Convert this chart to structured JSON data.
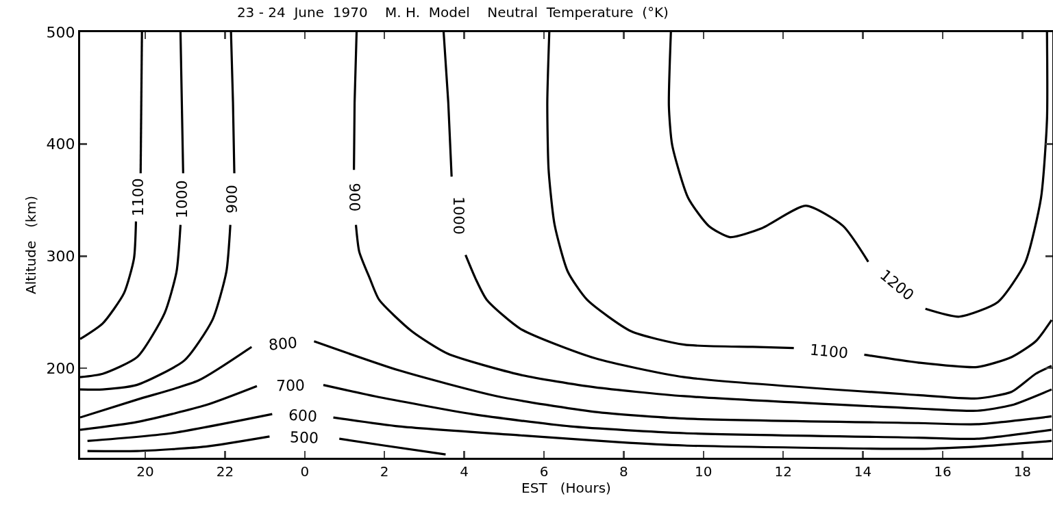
{
  "chart_data": {
    "type": "line",
    "title": "23 - 24  June  1970    M. H.  Model    Neutral  Temperature  (°K)",
    "xlabel": "EST   (Hours)",
    "ylabel": "Altitude   (km)",
    "xlim": [
      "1970-06-23T18:22",
      "1970-06-24T18:45"
    ],
    "ylim": [
      120,
      500
    ],
    "xticks": [
      {
        "value": "1970-06-23T20:00",
        "label": "20"
      },
      {
        "value": "1970-06-23T22:00",
        "label": "22"
      },
      {
        "value": "1970-06-24T00:00",
        "label": "0"
      },
      {
        "value": "1970-06-24T02:00",
        "label": "2"
      },
      {
        "value": "1970-06-24T04:00",
        "label": "4"
      },
      {
        "value": "1970-06-24T06:00",
        "label": "6"
      },
      {
        "value": "1970-06-24T08:00",
        "label": "8"
      },
      {
        "value": "1970-06-24T10:00",
        "label": "10"
      },
      {
        "value": "1970-06-24T12:00",
        "label": "12"
      },
      {
        "value": "1970-06-24T14:00",
        "label": "14"
      },
      {
        "value": "1970-06-24T16:00",
        "label": "16"
      },
      {
        "value": "1970-06-24T18:00",
        "label": "18"
      }
    ],
    "yticks": [
      200,
      300,
      400,
      500
    ],
    "grid": false,
    "legend": false,
    "marker": "none",
    "line_style": "solid",
    "series": [
      {
        "name": "1100",
        "color": "#000000",
        "x": [
          "1970-06-23T19:55",
          "1970-06-23T19:54",
          "1970-06-23T19:53",
          null,
          "1970-06-23T19:46",
          "1970-06-23T19:43",
          "1970-06-23T19:28",
          "1970-06-23T18:56",
          "1970-06-23T18:22"
        ],
        "values": [
          500,
          437,
          374,
          null,
          331,
          298,
          267,
          240,
          226
        ]
      },
      {
        "name": "1000",
        "color": "#000000",
        "x": [
          "1970-06-23T20:53",
          "1970-06-23T20:55",
          "1970-06-23T20:57",
          null,
          "1970-06-23T20:53",
          "1970-06-23T20:47",
          "1970-06-23T20:29",
          "1970-06-23T19:48",
          "1970-06-23T18:56",
          "1970-06-23T18:22"
        ],
        "values": [
          500,
          437,
          374,
          null,
          328,
          286,
          249,
          210,
          195,
          192
        ]
      },
      {
        "name": "900",
        "color": "#000000",
        "x": [
          "1970-06-23T22:09",
          "1970-06-23T22:12",
          "1970-06-23T22:14",
          null,
          "1970-06-23T22:08",
          "1970-06-23T22:02",
          "1970-06-23T21:41",
          "1970-06-23T20:59",
          "1970-06-23T19:47",
          "1970-06-23T18:56",
          "1970-06-23T18:22"
        ],
        "values": [
          500,
          437,
          374,
          null,
          328,
          286,
          243,
          207,
          185,
          181,
          181
        ]
      },
      {
        "name": "800",
        "color": "#000000",
        "x": [
          "1970-06-23T18:22",
          "1970-06-23T19:48",
          "1970-06-23T21:20",
          "1970-06-23T22:40",
          null,
          "1970-06-24T00:14",
          "1970-06-24T02:22",
          "1970-06-24T04:49",
          "1970-06-24T07:16",
          "1970-06-24T09:31",
          "1970-06-24T15:23",
          "1970-06-24T16:52",
          "1970-06-24T18:44"
        ],
        "values": [
          156,
          172,
          189,
          219,
          null,
          224,
          198,
          175,
          161,
          155,
          151,
          150,
          157
        ]
      },
      {
        "name": "700",
        "color": "#000000",
        "x": [
          "1970-06-23T18:22",
          "1970-06-23T19:48",
          "1970-06-23T21:31",
          "1970-06-23T22:48",
          null,
          "1970-06-24T00:28",
          "1970-06-24T01:45",
          "1970-06-24T04:12",
          "1970-06-24T06:40",
          "1970-06-24T09:31",
          "1970-06-24T15:23",
          "1970-06-24T16:52",
          "1970-06-24T18:44"
        ],
        "values": [
          145,
          152,
          167,
          184,
          null,
          185,
          175,
          159,
          148,
          142,
          138,
          137,
          145
        ]
      },
      {
        "name": "600",
        "color": "#000000",
        "x": [
          "1970-06-23T18:33",
          "1970-06-23T20:40",
          "1970-06-23T23:11",
          null,
          "1970-06-24T00:43",
          "1970-06-24T02:22",
          "1970-06-24T05:25",
          "1970-06-24T07:52",
          "1970-06-24T09:31",
          "1970-06-24T15:23",
          "1970-06-24T16:52",
          "1970-06-24T18:44"
        ],
        "values": [
          135,
          142,
          159,
          null,
          156,
          148,
          140,
          134,
          131,
          128,
          130,
          135
        ]
      },
      {
        "name": "500",
        "color": "#000000",
        "x": [
          "1970-06-23T18:33",
          "1970-06-23T19:48",
          "1970-06-23T21:31",
          "1970-06-23T23:07",
          null,
          "1970-06-24T00:52",
          "1970-06-24T01:59",
          "1970-06-24T03:32"
        ],
        "values": [
          126,
          126,
          130,
          139,
          null,
          137,
          131,
          123
        ]
      },
      {
        "name": "900",
        "color": "#000000",
        "x": [
          "1970-06-24T01:18",
          "1970-06-24T01:15",
          "1970-06-24T01:14",
          null,
          "1970-06-24T01:17",
          "1970-06-24T01:22",
          "1970-06-24T01:38",
          "1970-06-24T01:52",
          "1970-06-24T02:41",
          "1970-06-24T03:35",
          "1970-06-24T05:25",
          "1970-06-24T07:16",
          "1970-06-24T09:31",
          "1970-06-24T15:23",
          "1970-06-24T16:52",
          "1970-06-24T17:44",
          "1970-06-24T18:44"
        ],
        "values": [
          500,
          437,
          377,
          null,
          328,
          304,
          280,
          261,
          233,
          213,
          194,
          183,
          175,
          164,
          162,
          167,
          181
        ]
      },
      {
        "name": "1000",
        "color": "#000000",
        "x": [
          "1970-06-24T03:29",
          "1970-06-24T03:36",
          "1970-06-24T03:41",
          null,
          "1970-06-24T04:02",
          "1970-06-24T04:17",
          "1970-06-24T04:34",
          "1970-06-24T05:25",
          "1970-06-24T07:16",
          "1970-06-24T09:31",
          "1970-06-24T15:23",
          "1970-06-24T16:52",
          "1970-06-24T17:44",
          "1970-06-24T18:20",
          "1970-06-24T18:44"
        ],
        "values": [
          500,
          437,
          371,
          null,
          301,
          280,
          261,
          235,
          209,
          192,
          176,
          173,
          179,
          195,
          202
        ]
      },
      {
        "name": "1100",
        "color": "#000000",
        "x": [
          "1970-06-24T06:08",
          "1970-06-24T06:05",
          "1970-06-24T06:07",
          "1970-06-24T06:16",
          "1970-06-24T06:36",
          "1970-06-24T07:05",
          "1970-06-24T08:11",
          "1970-06-24T09:31",
          "1970-06-24T11:14",
          "1970-06-24T12:16",
          null,
          "1970-06-24T14:02",
          "1970-06-24T15:23",
          "1970-06-24T16:52",
          "1970-06-24T17:44",
          "1970-06-24T18:20",
          "1970-06-24T18:44"
        ],
        "values": [
          500,
          437,
          377,
          328,
          286,
          261,
          233,
          221,
          219,
          218,
          null,
          212,
          205,
          201,
          210,
          224,
          243
        ]
      },
      {
        "name": "1200",
        "color": "#000000",
        "x": [
          "1970-06-24T09:11",
          "1970-06-24T09:08",
          "1970-06-24T09:13",
          "1970-06-24T09:37",
          "1970-06-24T10:08",
          "1970-06-24T10:40",
          "1970-06-24T11:28",
          "1970-06-24T12:34",
          "1970-06-24T13:30",
          "1970-06-24T14:08",
          null,
          "1970-06-24T15:34",
          "1970-06-24T16:25",
          "1970-06-24T17:23",
          "1970-06-24T18:04",
          "1970-06-24T18:28",
          "1970-06-24T18:37",
          "1970-06-24T18:37"
        ],
        "values": [
          500,
          434,
          399,
          352,
          327,
          317,
          325,
          345,
          327,
          295,
          null,
          253,
          246,
          259,
          294,
          352,
          422,
          500
        ]
      }
    ]
  }
}
